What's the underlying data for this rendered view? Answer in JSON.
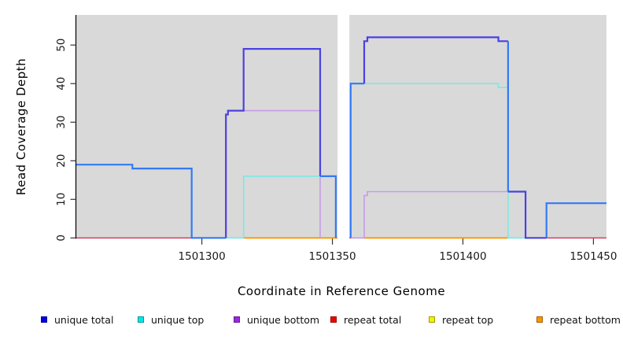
{
  "figure": {
    "y_axis": {
      "title": "Read Coverage Depth",
      "tick_labels": [
        "0",
        "10",
        "20",
        "30",
        "40",
        "50"
      ]
    },
    "x_axis": {
      "title": "Coordinate in Reference Genome",
      "tick_labels": [
        "1501300",
        "1501350",
        "1501400",
        "1501450"
      ]
    },
    "legend": {
      "items": [
        {
          "label": "unique total",
          "color": "#0000e6"
        },
        {
          "label": "unique top",
          "color": "#00e8e8"
        },
        {
          "label": "unique bottom",
          "color": "#9c27e0"
        },
        {
          "label": "repeat total",
          "color": "#f00000"
        },
        {
          "label": "repeat top",
          "color": "#f2f200"
        },
        {
          "label": "repeat bottom",
          "color": "#ff9300"
        }
      ]
    }
  },
  "chart_data": {
    "type": "line",
    "step": true,
    "title": "",
    "xlabel": "Coordinate in Reference Genome",
    "ylabel": "Read Coverage Depth",
    "xlim": [
      1501251.9,
      1501455.0
    ],
    "ylim": [
      0,
      57.8
    ],
    "x_ticks": [
      1501300,
      1501350,
      1501400,
      1501450
    ],
    "y_ticks": [
      0,
      10,
      20,
      30,
      40,
      50
    ],
    "grid": false,
    "plot_background": "#d9d9d9",
    "legend_position": "bottom",
    "no_data_gap": {
      "from": 1501352.0,
      "to": 1501356.5
    },
    "series": [
      {
        "name": "repeat total",
        "parts": [
          {
            "color": "#d43a5a",
            "width": 1.4,
            "points": [
              [
                1501251.9,
                0
              ],
              [
                1501455.0,
                0
              ]
            ]
          }
        ]
      },
      {
        "name": "repeat top",
        "parts": []
      },
      {
        "name": "repeat bottom",
        "parts": [
          {
            "color": "#ff9800",
            "width": 1.8,
            "points": [
              [
                1501316,
                0
              ],
              [
                1501352,
                0
              ]
            ]
          },
          {
            "color": "#ff9800",
            "width": 1.8,
            "points": [
              [
                1501362.2,
                0
              ],
              [
                1501417.3,
                0
              ]
            ]
          }
        ]
      },
      {
        "name": "unique bottom",
        "parts": [
          {
            "color": "#c79ce6",
            "width": 1.6,
            "points": [
              [
                1501309.2,
                0
              ],
              [
                1501309.2,
                32
              ],
              [
                1501310,
                32
              ],
              [
                1501310,
                33
              ],
              [
                1501345.3,
                33
              ],
              [
                1501345.3,
                0
              ]
            ]
          },
          {
            "color": "#c79ce6",
            "width": 1.6,
            "points": [
              [
                1501357,
                0
              ],
              [
                1501362.2,
                0
              ],
              [
                1501362.2,
                11
              ],
              [
                1501363.4,
                11
              ],
              [
                1501363.4,
                12
              ],
              [
                1501424,
                12
              ],
              [
                1501424,
                0
              ]
            ]
          }
        ]
      },
      {
        "name": "unique top",
        "parts": [
          {
            "color": "#7be9e4",
            "width": 1.6,
            "points": [
              [
                1501309.2,
                0
              ],
              [
                1501316,
                0
              ],
              [
                1501316,
                16
              ],
              [
                1501351.3,
                16
              ]
            ]
          },
          {
            "color": "#7be9e4",
            "width": 1.6,
            "points": [
              [
                1501357,
                40
              ],
              [
                1501413.6,
                40
              ],
              [
                1501413.6,
                39
              ],
              [
                1501417.3,
                39
              ],
              [
                1501417.3,
                0
              ],
              [
                1501424,
                0
              ]
            ]
          }
        ]
      },
      {
        "name": "unique total",
        "parts": [
          {
            "color": "#337af5",
            "width": 2.2,
            "points": [
              [
                1501251.9,
                19
              ],
              [
                1501273.4,
                19
              ],
              [
                1501273.4,
                18
              ],
              [
                1501296.1,
                18
              ],
              [
                1501296.1,
                0
              ],
              [
                1501309.2,
                0
              ]
            ]
          },
          {
            "color": "#4b41e0",
            "width": 2.2,
            "points": [
              [
                1501309.2,
                0
              ],
              [
                1501309.2,
                32
              ],
              [
                1501310,
                32
              ],
              [
                1501310,
                33
              ],
              [
                1501316,
                33
              ],
              [
                1501316,
                49
              ],
              [
                1501345.3,
                49
              ],
              [
                1501345.3,
                16
              ]
            ]
          },
          {
            "color": "#337af5",
            "width": 2.2,
            "points": [
              [
                1501345.3,
                16
              ],
              [
                1501351.3,
                16
              ],
              [
                1501351.3,
                0
              ]
            ]
          },
          {
            "color": "#337af5",
            "width": 2.2,
            "points": [
              [
                1501357,
                0
              ],
              [
                1501357,
                40
              ],
              [
                1501362.2,
                40
              ]
            ]
          },
          {
            "color": "#4b41e0",
            "width": 2.2,
            "points": [
              [
                1501362.2,
                40
              ],
              [
                1501362.2,
                51
              ],
              [
                1501363.4,
                51
              ],
              [
                1501363.4,
                52
              ],
              [
                1501413.6,
                52
              ],
              [
                1501413.6,
                51
              ],
              [
                1501417.3,
                51
              ]
            ]
          },
          {
            "color": "#337af5",
            "width": 2.2,
            "points": [
              [
                1501417.3,
                51
              ],
              [
                1501417.3,
                12
              ]
            ]
          },
          {
            "color": "#4b41e0",
            "width": 2.2,
            "points": [
              [
                1501417.3,
                12
              ],
              [
                1501424,
                12
              ],
              [
                1501424,
                0
              ],
              [
                1501432,
                0
              ]
            ]
          },
          {
            "color": "#337af5",
            "width": 2.2,
            "points": [
              [
                1501432,
                0
              ],
              [
                1501432,
                9
              ],
              [
                1501455,
                9
              ]
            ]
          }
        ]
      }
    ]
  }
}
